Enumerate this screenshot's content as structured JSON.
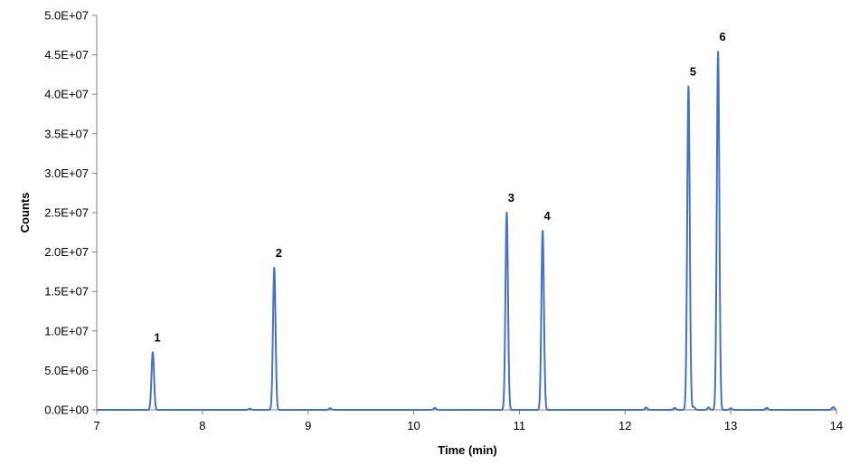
{
  "chart_data": {
    "type": "line",
    "title": "",
    "xlabel": "Time (min)",
    "ylabel": "Counts",
    "xlim": [
      7,
      14
    ],
    "ylim": [
      0,
      50000000
    ],
    "grid": false,
    "x_ticks": [
      7,
      8,
      9,
      10,
      11,
      12,
      13,
      14
    ],
    "x_tick_labels": [
      "7",
      "8",
      "9",
      "10",
      "11",
      "12",
      "13",
      "14"
    ],
    "y_ticks": [
      0,
      5000000,
      10000000,
      15000000,
      20000000,
      25000000,
      30000000,
      35000000,
      40000000,
      45000000,
      50000000
    ],
    "y_tick_labels": [
      "0.0E+00",
      "5.0E+06",
      "1.0E+07",
      "1.5E+07",
      "2.0E+07",
      "2.5E+07",
      "3.0E+07",
      "3.5E+07",
      "4.0E+07",
      "4.5E+07",
      "5.0E+07"
    ],
    "series_color": "#4472C4",
    "peaks": [
      {
        "label": "1",
        "time": 7.53,
        "counts": 7300000
      },
      {
        "label": "2",
        "time": 8.68,
        "counts": 18000000
      },
      {
        "label": "3",
        "time": 10.88,
        "counts": 25000000
      },
      {
        "label": "4",
        "time": 11.22,
        "counts": 22700000
      },
      {
        "label": "5",
        "time": 12.6,
        "counts": 41000000
      },
      {
        "label": "6",
        "time": 12.88,
        "counts": 45400000
      }
    ],
    "minor_peaks": [
      {
        "time": 8.45,
        "counts": 150000
      },
      {
        "time": 9.21,
        "counts": 200000
      },
      {
        "time": 10.2,
        "counts": 250000
      },
      {
        "time": 12.2,
        "counts": 300000
      },
      {
        "time": 12.47,
        "counts": 250000
      },
      {
        "time": 12.65,
        "counts": 350000
      },
      {
        "time": 12.79,
        "counts": 300000
      },
      {
        "time": 13.0,
        "counts": 200000
      },
      {
        "time": 13.34,
        "counts": 250000
      },
      {
        "time": 13.97,
        "counts": 350000
      }
    ]
  }
}
